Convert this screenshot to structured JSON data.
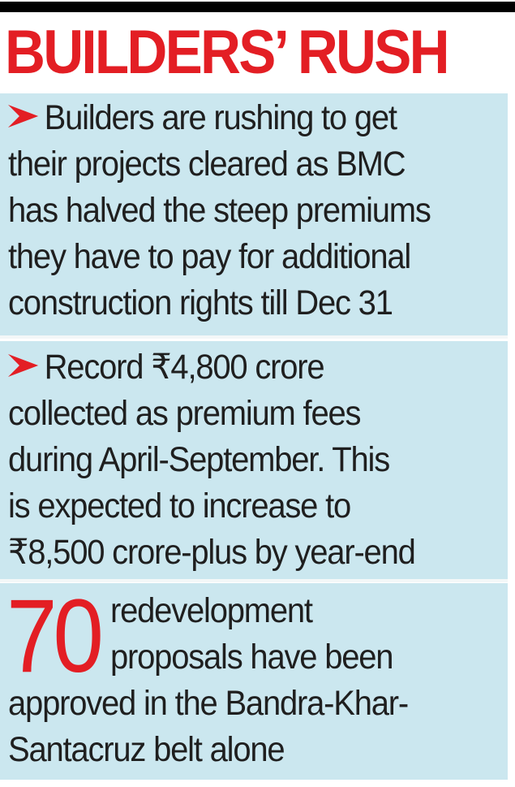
{
  "headline": "BUILDERS’ RUSH",
  "points": [
    {
      "lines": [
        "Builders are rushing to get",
        "their projects cleared as BMC",
        "has halved the steep premiums",
        "they have to pay for additional",
        "construction rights till Dec 31"
      ]
    },
    {
      "lines": [
        "Record ₹4,800 crore",
        "collected as premium fees",
        "during April-September. This",
        "is expected to increase to",
        "₹8,500 crore-plus by year-end"
      ]
    }
  ],
  "stat": {
    "number": "70",
    "side_lines": [
      "redevelopment",
      "proposals have been"
    ],
    "tail_lines": [
      "approved in the Bandra-Khar-",
      "Santacruz belt alone"
    ]
  },
  "colors": {
    "accent": "#e31e24",
    "panel": "#cbe7ef",
    "text": "#1f1f1f",
    "rule": "#000000"
  },
  "icons": {
    "bullet": "arrow-bullet-icon"
  }
}
